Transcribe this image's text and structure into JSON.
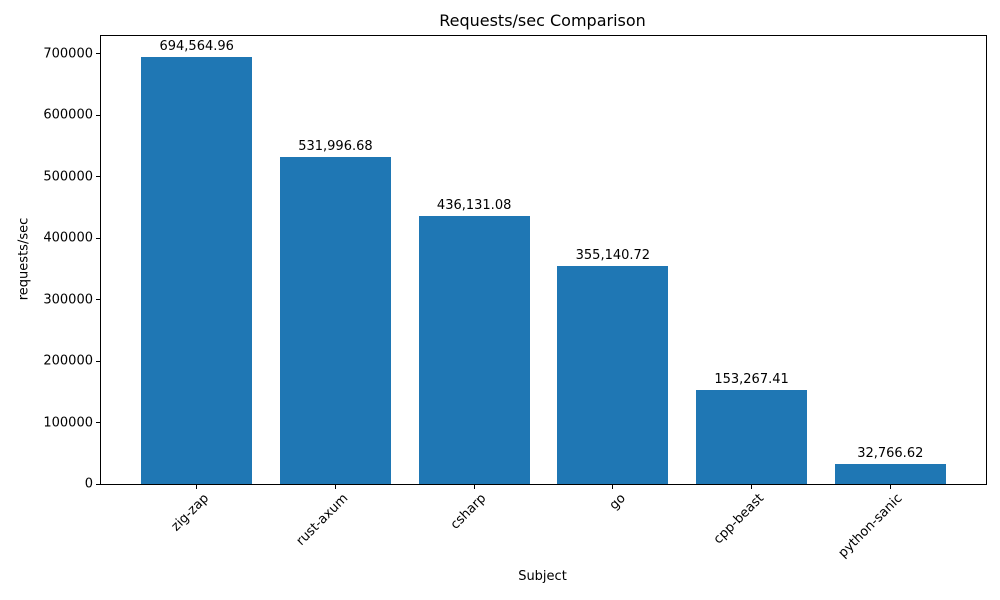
{
  "chart_data": {
    "type": "bar",
    "title": "Requests/sec Comparison",
    "xlabel": "Subject",
    "ylabel": "requests/sec",
    "categories": [
      "zig-zap",
      "rust-axum",
      "csharp",
      "go",
      "cpp-beast",
      "python-sanic"
    ],
    "values": [
      694564.96,
      531996.68,
      436131.08,
      355140.72,
      153267.41,
      32766.62
    ],
    "value_labels": [
      "694,564.96",
      "531,996.68",
      "436,131.08",
      "355,140.72",
      "153,267.41",
      "32,766.62"
    ],
    "yticks": [
      0,
      100000,
      200000,
      300000,
      400000,
      500000,
      600000,
      700000
    ],
    "ytick_labels": [
      "0",
      "100000",
      "200000",
      "300000",
      "400000",
      "500000",
      "600000",
      "700000"
    ],
    "ylim": [
      0,
      729293
    ],
    "xlim": [
      -0.69,
      5.69
    ],
    "bar_width": 0.8,
    "bar_color": "#1f77b4",
    "grid": false,
    "x_tick_rotation": 45,
    "legend": null
  }
}
